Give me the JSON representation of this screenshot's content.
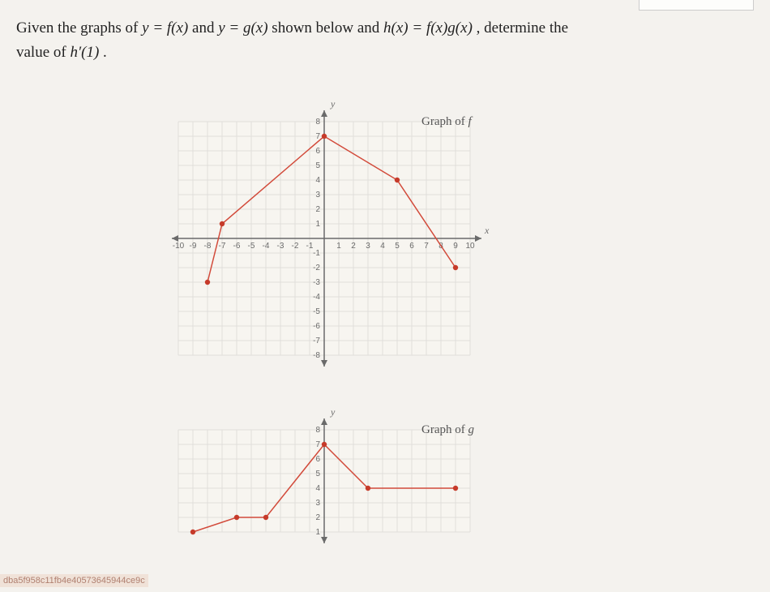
{
  "problem": {
    "line1_pre": "Given the graphs of ",
    "eq1": "y = f(x)",
    "line1_mid": " and ",
    "eq2": "y = g(x)",
    "line1_post": " shown below and ",
    "eq3": "h(x) = f(x)g(x)",
    "line1_end": ", determine the",
    "line2_pre": "value of ",
    "eq4": "h′(1)",
    "line2_end": "."
  },
  "chart_common": {
    "grid_color": "#e1dfda",
    "axis_color": "#6a6a6a",
    "tick_font_size": 10,
    "tick_color": "#6a6a6a",
    "line_color": "#d24a3a",
    "point_fill": "#c63a2a",
    "line_width": 1.5,
    "point_radius": 3.2,
    "bg": "#f7f5f0",
    "cell": 18
  },
  "chart_f": {
    "label": "Graph of f",
    "label_style": "italic",
    "x_range": [
      -10,
      10
    ],
    "y_range": [
      -8,
      8
    ],
    "x_ticks": [
      -10,
      -9,
      -8,
      -7,
      -6,
      -5,
      -4,
      -3,
      -2,
      -1,
      1,
      2,
      3,
      4,
      5,
      6,
      7,
      8,
      9,
      10
    ],
    "y_ticks": [
      -8,
      -7,
      -6,
      -5,
      -4,
      -3,
      -2,
      -1,
      1,
      2,
      3,
      4,
      5,
      6,
      7,
      8
    ],
    "y_label": "y",
    "x_label": "x",
    "points": [
      [
        -8,
        -3
      ],
      [
        -7,
        1
      ],
      [
        0,
        7
      ],
      [
        5,
        4
      ],
      [
        9,
        -2
      ]
    ]
  },
  "chart_g": {
    "label": "Graph of g",
    "label_style": "italic",
    "x_range": [
      -10,
      10
    ],
    "y_range": [
      1,
      8
    ],
    "x_ticks": [],
    "y_ticks": [
      1,
      2,
      3,
      4,
      5,
      6,
      7,
      8
    ],
    "y_label": "y",
    "points": [
      [
        -9,
        1
      ],
      [
        -6,
        2
      ],
      [
        -4,
        2
      ],
      [
        0,
        7
      ],
      [
        3,
        4
      ],
      [
        9,
        4
      ]
    ]
  },
  "watermark": "dba5f958c11fb4e40573645944ce9c"
}
